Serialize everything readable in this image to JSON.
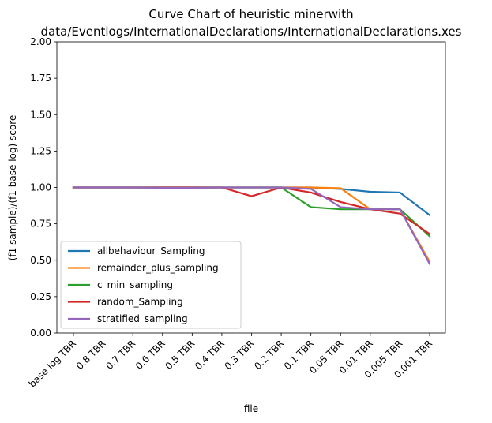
{
  "chart_data": {
    "type": "line",
    "title_line1": "Curve Chart of heuristic minerwith",
    "title_line2": "data/Eventlogs/InternationalDeclarations/InternationalDeclarations.xes",
    "xlabel": "file",
    "ylabel": "(f1 sample)/(f1 base log) score",
    "ylim": [
      0,
      2
    ],
    "yticks": [
      "0.00",
      "0.25",
      "0.50",
      "0.75",
      "1.00",
      "1.25",
      "1.50",
      "1.75",
      "2.00"
    ],
    "categories": [
      "base log TBR",
      "0.8 TBR",
      "0.7 TBR",
      "0.6 TBR",
      "0.5 TBR",
      "0.4 TBR",
      "0.3 TBR",
      "0.2 TBR",
      "0.1 TBR",
      "0.05 TBR",
      "0.01 TBR",
      "0.005 TBR",
      "0.001 TBR"
    ],
    "grid": false,
    "legend_position": "lower-left",
    "series": [
      {
        "name": "allbehaviour_Sampling",
        "color": "#1f77b4",
        "values": [
          1.0,
          1.0,
          1.0,
          1.0,
          1.0,
          1.0,
          1.0,
          1.0,
          1.0,
          0.99,
          0.97,
          0.965,
          0.81
        ]
      },
      {
        "name": "remainder_plus_sampling",
        "color": "#ff7f0e",
        "values": [
          1.0,
          1.0,
          1.0,
          1.0,
          1.0,
          1.0,
          1.0,
          1.0,
          1.0,
          0.995,
          0.85,
          0.85,
          0.49
        ]
      },
      {
        "name": "c_min_sampling",
        "color": "#2ca02c",
        "values": [
          1.0,
          1.0,
          1.0,
          1.0,
          1.0,
          1.0,
          1.0,
          1.0,
          0.865,
          0.85,
          0.85,
          0.85,
          0.665
        ]
      },
      {
        "name": "random_Sampling",
        "color": "#d62728",
        "values": [
          1.0,
          1.0,
          1.0,
          1.0,
          1.0,
          1.0,
          0.94,
          1.0,
          0.965,
          0.9,
          0.85,
          0.82,
          0.68
        ]
      },
      {
        "name": "stratified_sampling",
        "color": "#9467bd",
        "values": [
          1.0,
          1.0,
          1.0,
          0.998,
          0.998,
          1.0,
          1.0,
          1.0,
          0.99,
          0.865,
          0.85,
          0.85,
          0.475
        ]
      }
    ]
  }
}
